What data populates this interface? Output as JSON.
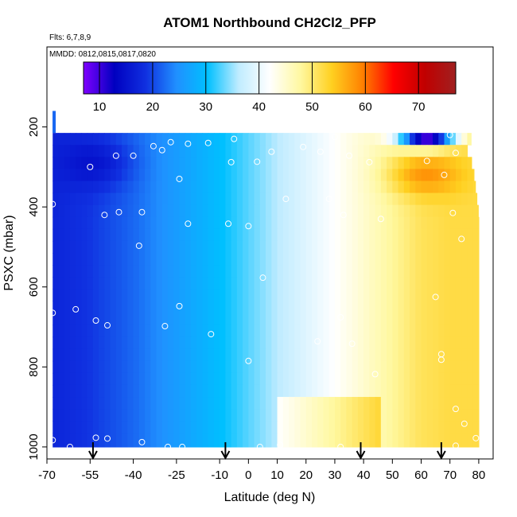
{
  "chart_data": {
    "type": "heatmap",
    "title": "ATOM1 Northbound CH2Cl2_PFP",
    "subtitle_flights": "Flts: 6,7,8,9",
    "subtitle_dates": "MMDD: 0812,0815,0817,0820",
    "xlabel": "Latitude (deg N)",
    "ylabel": "PSXC (mbar)",
    "xlim": [
      -70,
      85
    ],
    "ylim": [
      1030,
      0
    ],
    "x_ticks": [
      -70,
      -55,
      -40,
      -25,
      -10,
      0,
      10,
      20,
      30,
      40,
      50,
      60,
      70,
      80
    ],
    "y_ticks": [
      200,
      400,
      600,
      800,
      1000
    ],
    "colorbar": {
      "range": [
        7,
        77
      ],
      "ticks": [
        10,
        20,
        30,
        40,
        50,
        60,
        70
      ],
      "colors": [
        "#7f00ff",
        "#0000c0",
        "#1030e0",
        "#2090ff",
        "#00c0ff",
        "#c0ecff",
        "#ffffff",
        "#fff8a0",
        "#ffd020",
        "#ff8000",
        "#ff0000",
        "#c00000",
        "#a02020"
      ]
    },
    "field_bounds": {
      "lat_min": -68,
      "pressure_top": 215,
      "pressure_bottom": 1000,
      "north_edge": [
        {
          "p": 215,
          "lat": 78
        },
        {
          "p": 260,
          "lat": 76
        },
        {
          "p": 300,
          "lat": 78
        },
        {
          "p": 360,
          "lat": 79
        },
        {
          "p": 420,
          "lat": 80
        },
        {
          "p": 1000,
          "lat": 80
        }
      ],
      "extra_column": {
        "lat": -67.5,
        "p_top": 160,
        "p_bottom": 215,
        "value": 22
      }
    },
    "gradient_profile": [
      {
        "lat": -70,
        "value": 17
      },
      {
        "lat": -55,
        "value": 19
      },
      {
        "lat": -40,
        "value": 22
      },
      {
        "lat": -25,
        "value": 26
      },
      {
        "lat": -10,
        "value": 30
      },
      {
        "lat": 0,
        "value": 33
      },
      {
        "lat": 10,
        "value": 36
      },
      {
        "lat": 20,
        "value": 39
      },
      {
        "lat": 30,
        "value": 42
      },
      {
        "lat": 40,
        "value": 45
      },
      {
        "lat": 50,
        "value": 48
      },
      {
        "lat": 60,
        "value": 51
      },
      {
        "lat": 70,
        "value": 52
      },
      {
        "lat": 80,
        "value": 52
      }
    ],
    "low_level_enhancement": {
      "p_min": 880,
      "lat_min": 10,
      "lat_max": 45,
      "delta": 6
    },
    "upper_anomalies": [
      {
        "lat": 62,
        "lat_halfwidth": 12,
        "p": 320,
        "p_halfwidth": 50,
        "value": 58
      },
      {
        "lat": 62,
        "lat_halfwidth": 10,
        "p": 230,
        "p_halfwidth": 20,
        "value": 10
      },
      {
        "lat": -55,
        "lat_halfwidth": 12,
        "p": 290,
        "p_halfwidth": 60,
        "value": 15
      }
    ],
    "samples": [
      {
        "lat": 70,
        "p": 220
      },
      {
        "lat": 30,
        "p": 225
      },
      {
        "lat": -5,
        "p": 230
      },
      {
        "lat": -27,
        "p": 238
      },
      {
        "lat": -21,
        "p": 242
      },
      {
        "lat": -14,
        "p": 240
      },
      {
        "lat": -33,
        "p": 248
      },
      {
        "lat": -30,
        "p": 258
      },
      {
        "lat": 19,
        "p": 250
      },
      {
        "lat": 25,
        "p": 262
      },
      {
        "lat": 8,
        "p": 262
      },
      {
        "lat": -40,
        "p": 272
      },
      {
        "lat": -46,
        "p": 272
      },
      {
        "lat": 35,
        "p": 272
      },
      {
        "lat": 72,
        "p": 265
      },
      {
        "lat": 42,
        "p": 288
      },
      {
        "lat": -6,
        "p": 288
      },
      {
        "lat": 3,
        "p": 287
      },
      {
        "lat": -55,
        "p": 300
      },
      {
        "lat": -24,
        "p": 330
      },
      {
        "lat": 62,
        "p": 285
      },
      {
        "lat": 68,
        "p": 320
      },
      {
        "lat": 13,
        "p": 380
      },
      {
        "lat": 28,
        "p": 380
      },
      {
        "lat": -68,
        "p": 393
      },
      {
        "lat": -37,
        "p": 413
      },
      {
        "lat": -45,
        "p": 413
      },
      {
        "lat": -50,
        "p": 420
      },
      {
        "lat": 33,
        "p": 420
      },
      {
        "lat": 46,
        "p": 430
      },
      {
        "lat": 71,
        "p": 415
      },
      {
        "lat": -21,
        "p": 442
      },
      {
        "lat": -7,
        "p": 442
      },
      {
        "lat": 0,
        "p": 448
      },
      {
        "lat": 74,
        "p": 480
      },
      {
        "lat": -38,
        "p": 497
      },
      {
        "lat": 5,
        "p": 577
      },
      {
        "lat": 65,
        "p": 625
      },
      {
        "lat": -68,
        "p": 665
      },
      {
        "lat": -60,
        "p": 656
      },
      {
        "lat": -24,
        "p": 648
      },
      {
        "lat": 32,
        "p": 676
      },
      {
        "lat": -53,
        "p": 684
      },
      {
        "lat": -49,
        "p": 696
      },
      {
        "lat": -29,
        "p": 698
      },
      {
        "lat": -13,
        "p": 718
      },
      {
        "lat": 24,
        "p": 736
      },
      {
        "lat": 36,
        "p": 742
      },
      {
        "lat": 67,
        "p": 768
      },
      {
        "lat": 67,
        "p": 782
      },
      {
        "lat": 0,
        "p": 785
      },
      {
        "lat": 44,
        "p": 818
      },
      {
        "lat": 72,
        "p": 905
      },
      {
        "lat": 75,
        "p": 942
      },
      {
        "lat": 79,
        "p": 978
      },
      {
        "lat": -68,
        "p": 983
      },
      {
        "lat": -53,
        "p": 977
      },
      {
        "lat": -49,
        "p": 979
      },
      {
        "lat": -37,
        "p": 988
      },
      {
        "lat": -28,
        "p": 1000
      },
      {
        "lat": -23,
        "p": 1000
      },
      {
        "lat": 4,
        "p": 1000
      },
      {
        "lat": 11,
        "p": 995
      },
      {
        "lat": 32,
        "p": 1000
      },
      {
        "lat": 72,
        "p": 997
      },
      {
        "lat": -62,
        "p": 1000
      }
    ],
    "date_arrows_lat": [
      -54,
      -8,
      39,
      67
    ]
  }
}
